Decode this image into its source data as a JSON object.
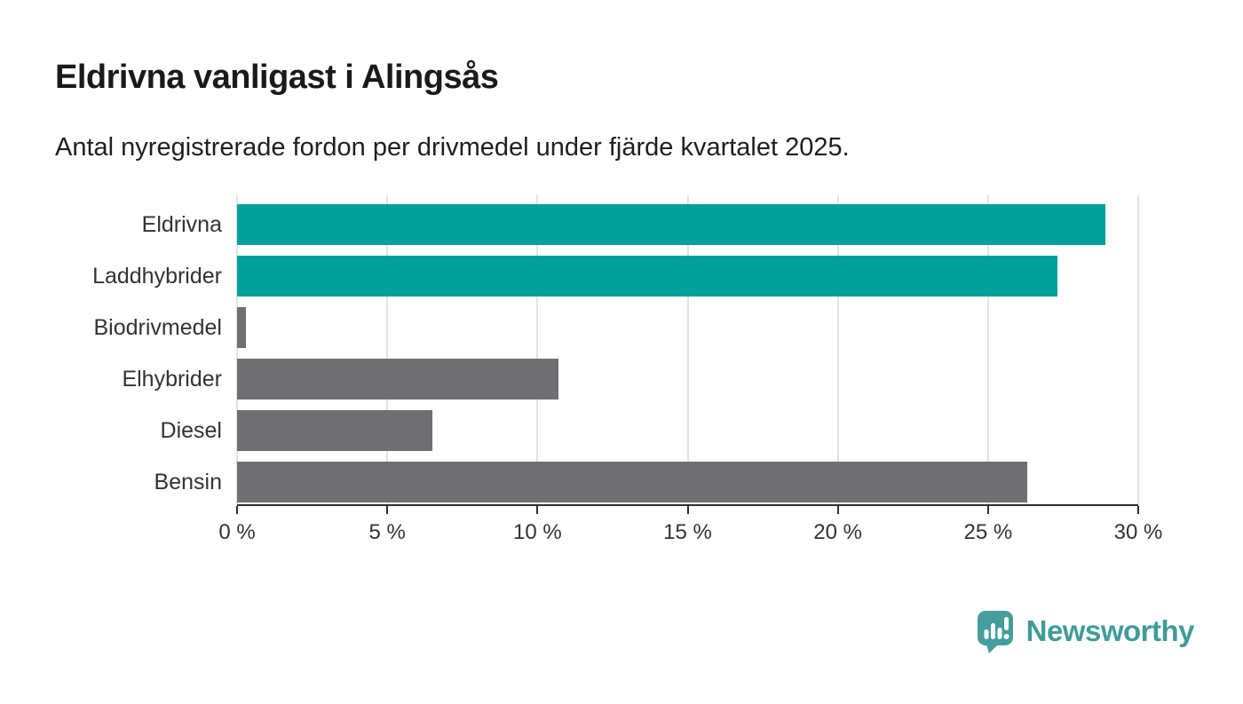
{
  "header": {
    "title": "Eldrivna vanligast i Alingsås",
    "subtitle": "Antal nyregistrerade fordon per drivmedel under fjärde kvartalet 2025."
  },
  "chart_data": {
    "type": "bar",
    "orientation": "horizontal",
    "title": "Eldrivna vanligast i Alingsås",
    "subtitle": "Antal nyregistrerade fordon per drivmedel under fjärde kvartalet 2025.",
    "categories": [
      "Eldrivna",
      "Laddhybrider",
      "Biodrivmedel",
      "Elhybrider",
      "Diesel",
      "Bensin"
    ],
    "values": [
      28.9,
      27.3,
      0.3,
      10.7,
      6.5,
      26.3
    ],
    "unit": "%",
    "bar_colors": [
      "#00a09b",
      "#00a09b",
      "#6e6e73",
      "#6e6e73",
      "#6e6e73",
      "#6e6e73"
    ],
    "xlim": [
      0,
      30
    ],
    "x_tick_step": 5,
    "x_tick_labels": [
      "0 %",
      "5 %",
      "10 %",
      "15 %",
      "20 %",
      "25 %",
      "30 %"
    ],
    "grid": "vertical-gridlines",
    "legend": "none",
    "value_labels": "none"
  },
  "colors": {
    "accent_teal": "#00a09b",
    "neutral_gray": "#6e6e73",
    "gridline": "#e2e2e2",
    "axis": "#2f2f2f",
    "text_dark": "#1a1a1a",
    "label_gray": "#333333",
    "logo_teal": "#3f9c9b"
  },
  "footer": {
    "brand": "Newsworthy"
  }
}
